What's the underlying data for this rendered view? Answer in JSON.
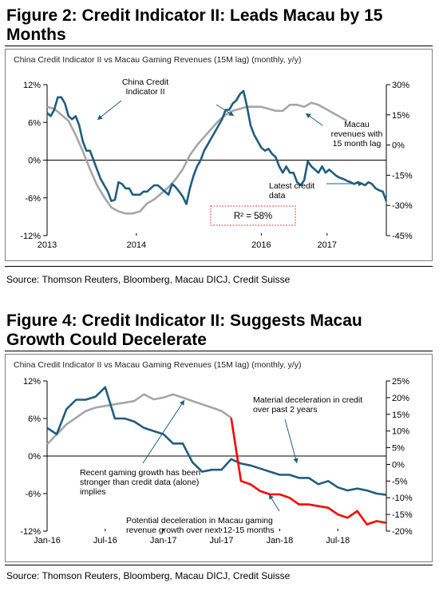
{
  "figures": [
    {
      "title_line1": "Figure 2: Credit Indicator II: Leads Macau by 15",
      "title_line2": "Months",
      "source": "Source: Thomson Reuters, Bloomberg, Macau DICJ, Credit Suisse"
    },
    {
      "title_line1": "Figure 4: Credit Indicator II: Suggests Macau",
      "title_line2": "Growth Could Decelerate",
      "source": "Source: Thomson Reuters, Bloomberg, Macau DICJ, Credit Suisse"
    }
  ],
  "chart_data": [
    {
      "type": "line",
      "title": "China Credit Indicator II vs Macau Gaming Revenues (15M lag) (monthly, y/y)",
      "x_range": [
        2013.0,
        2017.75
      ],
      "x_ticks": [
        {
          "label": "2013",
          "x": 2013.0
        },
        {
          "label": "2014",
          "x": 2014.25
        },
        {
          "label": "2016",
          "x": 2016.0
        },
        {
          "label": "2017",
          "x": 2016.92
        }
      ],
      "y_left": {
        "range": [
          -12,
          12
        ],
        "ticks": [
          "12%",
          "6%",
          "0%",
          "-6%",
          "-12%"
        ],
        "values": [
          12,
          6,
          0,
          -6,
          -12
        ]
      },
      "y_right": {
        "range": [
          -45,
          30
        ],
        "ticks": [
          "30%",
          "15%",
          "0%",
          "-15%",
          "-30%",
          "-45%"
        ],
        "values": [
          30,
          15,
          0,
          -15,
          -30,
          -45
        ]
      },
      "grid": false,
      "annotations": {
        "credit_label": [
          "China Credit",
          "Indicator II"
        ],
        "macau_label": [
          "Macau",
          "revenues with",
          "15 month lag"
        ],
        "latest_label": [
          "Latest credit",
          "data"
        ],
        "r2_text": "R² = 58%"
      },
      "series": [
        {
          "name": "China Credit Indicator II",
          "axis": "left",
          "color": "#1f5d7e",
          "x": [
            2013.0,
            2013.05,
            2013.1,
            2013.15,
            2013.2,
            2013.25,
            2013.3,
            2013.35,
            2013.4,
            2013.45,
            2013.5,
            2013.55,
            2013.6,
            2013.65,
            2013.7,
            2013.75,
            2013.8,
            2013.85,
            2013.9,
            2013.95,
            2014.0,
            2014.05,
            2014.1,
            2014.15,
            2014.2,
            2014.25,
            2014.3,
            2014.35,
            2014.4,
            2014.45,
            2014.5,
            2014.55,
            2014.6,
            2014.65,
            2014.7,
            2014.75,
            2014.8,
            2014.85,
            2014.9,
            2014.95,
            2015.0,
            2015.05,
            2015.1,
            2015.15,
            2015.2,
            2015.25,
            2015.3,
            2015.35,
            2015.4,
            2015.45,
            2015.5,
            2015.55,
            2015.6,
            2015.65,
            2015.7,
            2015.75,
            2015.8,
            2015.85,
            2015.9,
            2015.95,
            2016.0,
            2016.05,
            2016.1,
            2016.15,
            2016.2,
            2016.25,
            2016.3,
            2016.35,
            2016.4,
            2016.45,
            2016.5,
            2016.55,
            2016.6,
            2016.65,
            2016.7,
            2016.75,
            2016.8,
            2016.85,
            2016.9,
            2016.95,
            2017.0,
            2017.05,
            2017.1,
            2017.15,
            2017.2,
            2017.25,
            2017.3,
            2017.35,
            2017.4,
            2017.45,
            2017.5,
            2017.55,
            2017.6,
            2017.65,
            2017.7,
            2017.75
          ],
          "values": [
            7.5,
            7.0,
            8.0,
            10.0,
            10.0,
            9.0,
            7.0,
            6.5,
            7.0,
            5.5,
            3.0,
            1.5,
            1.5,
            0.0,
            -1.5,
            -3.0,
            -4.0,
            -5.0,
            -6.5,
            -6.3,
            -3.5,
            -3.8,
            -4.5,
            -4.5,
            -5.5,
            -5.5,
            -5.5,
            -5.0,
            -5.0,
            -4.5,
            -4.0,
            -4.0,
            -4.5,
            -5.0,
            -5.5,
            -3.8,
            -4.3,
            -5.0,
            -5.8,
            -7.0,
            -4.5,
            -2.5,
            -1.0,
            0.0,
            1.5,
            2.5,
            3.5,
            4.5,
            5.5,
            6.5,
            8.0,
            8.0,
            9.0,
            9.5,
            10.5,
            11.0,
            8.5,
            5.5,
            4.0,
            3.0,
            2.0,
            1.5,
            1.8,
            1.0,
            0.5,
            -1.0,
            -2.0,
            -1.0,
            -2.0,
            -2.0,
            -3.5,
            -4.0,
            -3.2,
            -0.2,
            -1.0,
            -1.5,
            -2.0,
            -1.0,
            -2.0,
            -1.5,
            -2.0,
            -2.5,
            -2.8,
            -3.0,
            -3.3,
            -3.5,
            -3.8,
            -3.5,
            -3.7,
            -4.0,
            -3.5,
            -3.8,
            -4.5,
            -4.8,
            -5.0,
            -6.5
          ]
        },
        {
          "name": "Macau revenues with 15 month lag",
          "axis": "right",
          "color": "#a6a6a6",
          "x": [
            2013.0,
            2013.1,
            2013.2,
            2013.3,
            2013.4,
            2013.5,
            2013.6,
            2013.7,
            2013.8,
            2013.9,
            2014.0,
            2014.1,
            2014.2,
            2014.3,
            2014.4,
            2014.5,
            2014.6,
            2014.7,
            2014.8,
            2014.9,
            2015.0,
            2015.1,
            2015.2,
            2015.3,
            2015.4,
            2015.5,
            2015.6,
            2015.7,
            2015.8,
            2015.9,
            2016.0,
            2016.1,
            2016.2,
            2016.3,
            2016.4,
            2016.5,
            2016.6,
            2016.7,
            2016.8,
            2016.9,
            2017.0,
            2017.1,
            2017.2
          ],
          "values": [
            19,
            18,
            15,
            12,
            5,
            -3,
            -12,
            -20,
            -26,
            -31,
            -33,
            -34,
            -34,
            -33,
            -29,
            -27,
            -24,
            -21,
            -17,
            -12,
            -5,
            0,
            4,
            8,
            12,
            15,
            17,
            18,
            19,
            19,
            19,
            18,
            17,
            17,
            20,
            20,
            19,
            21,
            20,
            18,
            16,
            14,
            12
          ]
        }
      ]
    },
    {
      "type": "line",
      "title": "China Credit Indicator II vs Macau Gaming Revenues (15M lag) (monthly, y/y)",
      "x_range": [
        2016.0,
        2018.917
      ],
      "x_ticks": [
        {
          "label": "Jan-16",
          "x": 2016.0
        },
        {
          "label": "Jul-16",
          "x": 2016.5
        },
        {
          "label": "Jan-17",
          "x": 2017.0
        },
        {
          "label": "Jul-17",
          "x": 2017.5
        },
        {
          "label": "Jan-18",
          "x": 2018.0
        },
        {
          "label": "Jul-18",
          "x": 2018.5
        }
      ],
      "y_left": {
        "range": [
          -12,
          12
        ],
        "ticks": [
          "12%",
          "6%",
          "0%",
          "-6%",
          "-12%"
        ],
        "values": [
          12,
          6,
          0,
          -6,
          -12
        ]
      },
      "y_right": {
        "range": [
          -20,
          25
        ],
        "ticks": [
          "25%",
          "20%",
          "15%",
          "10%",
          "5%",
          "0%",
          "-5%",
          "-10%",
          "-15%",
          "-20%"
        ],
        "values": [
          25,
          20,
          15,
          10,
          5,
          0,
          -5,
          -10,
          -15,
          -20
        ]
      },
      "grid": false,
      "annotations": {
        "material_label": [
          "Material deceleration in credit",
          "over past 2 years"
        ],
        "recent_label": [
          "Recent gaming growth has been",
          "stronger than credit data (alone)",
          "implies"
        ],
        "potential_label": [
          "Potential deceleration in Macau gaming",
          "revenue growth over next 12-15 months"
        ]
      },
      "series": [
        {
          "name": "China Credit Indicator II",
          "axis": "left",
          "color": "#1f5d7e",
          "x": [
            2016.0,
            2016.083,
            2016.167,
            2016.25,
            2016.333,
            2016.417,
            2016.5,
            2016.583,
            2016.667,
            2016.75,
            2016.833,
            2016.917,
            2017.0,
            2017.083,
            2017.167,
            2017.25,
            2017.333,
            2017.417,
            2017.5,
            2017.583,
            2017.667,
            2017.75,
            2017.833,
            2017.917,
            2018.0,
            2018.083,
            2018.167,
            2018.25,
            2018.333,
            2018.417,
            2018.5,
            2018.583,
            2018.667,
            2018.75,
            2018.833,
            2018.917
          ],
          "values": [
            4.5,
            3.5,
            7.5,
            9.0,
            9.0,
            9.5,
            11.0,
            6.0,
            6.0,
            5.5,
            4.5,
            4.0,
            3.5,
            2.0,
            2.0,
            -1.0,
            -2.5,
            -2.2,
            -2.2,
            -0.5,
            -1.2,
            -1.5,
            -2.0,
            -2.5,
            -3.0,
            -3.0,
            -3.5,
            -3.5,
            -4.5,
            -4.0,
            -5.0,
            -5.5,
            -5.2,
            -5.5,
            -6.0,
            -6.2
          ]
        },
        {
          "name": "Macau gaming revenues (15M lag)",
          "axis": "right",
          "color": "#a6a6a6",
          "x": [
            2016.0,
            2016.083,
            2016.167,
            2016.25,
            2016.333,
            2016.417,
            2016.5,
            2016.583,
            2016.667,
            2016.75,
            2016.833,
            2016.917,
            2017.0,
            2017.083,
            2017.167,
            2017.25,
            2017.333,
            2017.417,
            2017.5,
            2017.583
          ],
          "values": [
            6,
            9,
            12,
            14,
            16,
            17,
            17.5,
            18,
            18.5,
            19,
            21,
            19.5,
            20,
            21,
            20,
            19,
            18,
            17,
            16,
            14
          ]
        },
        {
          "name": "Potential deceleration",
          "axis": "right",
          "color": "#ff0000",
          "x": [
            2017.583,
            2017.667,
            2017.75,
            2017.833,
            2017.917,
            2018.0,
            2018.083,
            2018.167,
            2018.25,
            2018.333,
            2018.417,
            2018.5,
            2018.583,
            2018.667,
            2018.75,
            2018.833,
            2018.917
          ],
          "values": [
            14,
            -5,
            -6,
            -8,
            -9,
            -9,
            -10,
            -12,
            -12,
            -12.5,
            -13,
            -15,
            -16,
            -14,
            -18,
            -17,
            -17.5
          ]
        }
      ]
    }
  ]
}
